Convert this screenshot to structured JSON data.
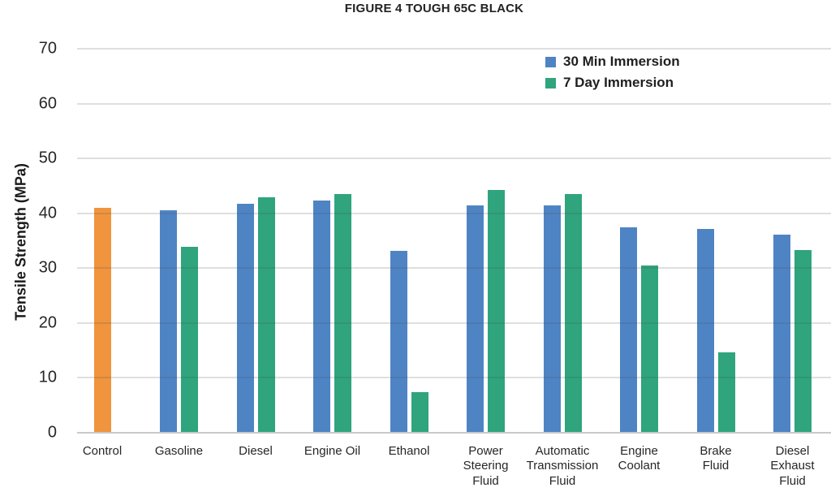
{
  "chart_data": {
    "type": "bar",
    "title": "FIGURE 4 TOUGH 65C BLACK",
    "xlabel": "",
    "ylabel": "Tensile Strength (MPa)",
    "ylim": [
      0,
      70
    ],
    "ytick_step": 10,
    "grid": true,
    "legend_position": "inside-top-right",
    "categories": [
      "Control",
      "Gasoline",
      "Diesel",
      "Engine Oil",
      "Ethanol",
      "Power Steering Fluid",
      "Automatic Transmission Fluid",
      "Engine Coolant",
      "Brake Fluid",
      "Diesel Exhaust Fluid"
    ],
    "category_label_lines": [
      [
        "Control"
      ],
      [
        "Gasoline"
      ],
      [
        "Diesel"
      ],
      [
        "Engine Oil"
      ],
      [
        "Ethanol"
      ],
      [
        "Power",
        "Steering",
        "Fluid"
      ],
      [
        "Automatic",
        "Transmission",
        "Fluid"
      ],
      [
        "Engine",
        "Coolant"
      ],
      [
        "Brake",
        "Fluid"
      ],
      [
        "Diesel",
        "Exhaust",
        "Fluid"
      ]
    ],
    "series": [
      {
        "name": "30 Min Immersion",
        "color": "#4e84c4",
        "values": [
          null,
          40.6,
          41.8,
          42.3,
          33.1,
          41.5,
          41.4,
          37.4,
          37.1,
          36.1
        ]
      },
      {
        "name": "7 Day Immersion",
        "color": "#2fa47d",
        "values": [
          null,
          33.9,
          42.9,
          43.5,
          7.4,
          44.2,
          43.5,
          30.5,
          14.7,
          33.3
        ]
      }
    ],
    "control_bar": {
      "category": "Control",
      "value": 41.0,
      "color": "#f0943e"
    },
    "colors": {
      "gridline": "#d9d9d9",
      "axis_line": "#c9c9c9",
      "text": "#262626"
    }
  }
}
